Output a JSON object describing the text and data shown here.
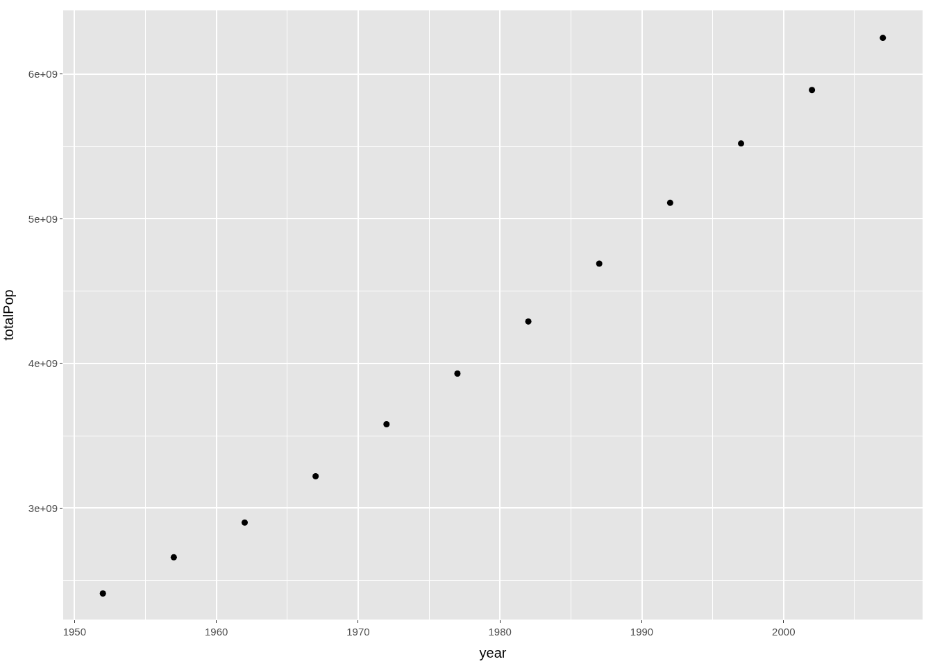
{
  "chart_data": {
    "type": "scatter",
    "xlabel": "year",
    "ylabel": "totalPop",
    "x": [
      1952,
      1957,
      1962,
      1967,
      1972,
      1977,
      1982,
      1987,
      1992,
      1997,
      2002,
      2007
    ],
    "series": [
      {
        "color": "#000000",
        "values": [
          2410000000.0,
          2660000000.0,
          2900000000.0,
          3220000000.0,
          3580000000.0,
          3930000000.0,
          4290000000.0,
          4690000000.0,
          5110000000.0,
          5520000000.0,
          5890000000.0,
          6250000000.0
        ]
      }
    ],
    "xlim": [
      1949.2,
      2009.8
    ],
    "ylim": [
      2230000000.0,
      6440000000.0
    ],
    "xticks": [
      1950,
      {
        "value": 1955,
        "label": null
      },
      1960,
      {
        "value": 1965,
        "label": null
      },
      1970,
      {
        "value": 1975,
        "label": null
      },
      1980,
      {
        "value": 1985,
        "label": null
      },
      1990,
      {
        "value": 1995,
        "label": null
      },
      2000,
      {
        "value": 2005,
        "label": null
      }
    ],
    "yticks": [
      {
        "value": 2500000000.0,
        "label": null
      },
      {
        "value": 3000000000.0,
        "label": "3e+09"
      },
      {
        "value": 3500000000.0,
        "label": null
      },
      {
        "value": 4000000000.0,
        "label": "4e+09"
      },
      {
        "value": 4500000000.0,
        "label": null
      },
      {
        "value": 5000000000.0,
        "label": "5e+09"
      },
      {
        "value": 5500000000.0,
        "label": null
      },
      {
        "value": 6000000000.0,
        "label": "6e+09"
      }
    ],
    "grid": true,
    "marker": "circle"
  }
}
